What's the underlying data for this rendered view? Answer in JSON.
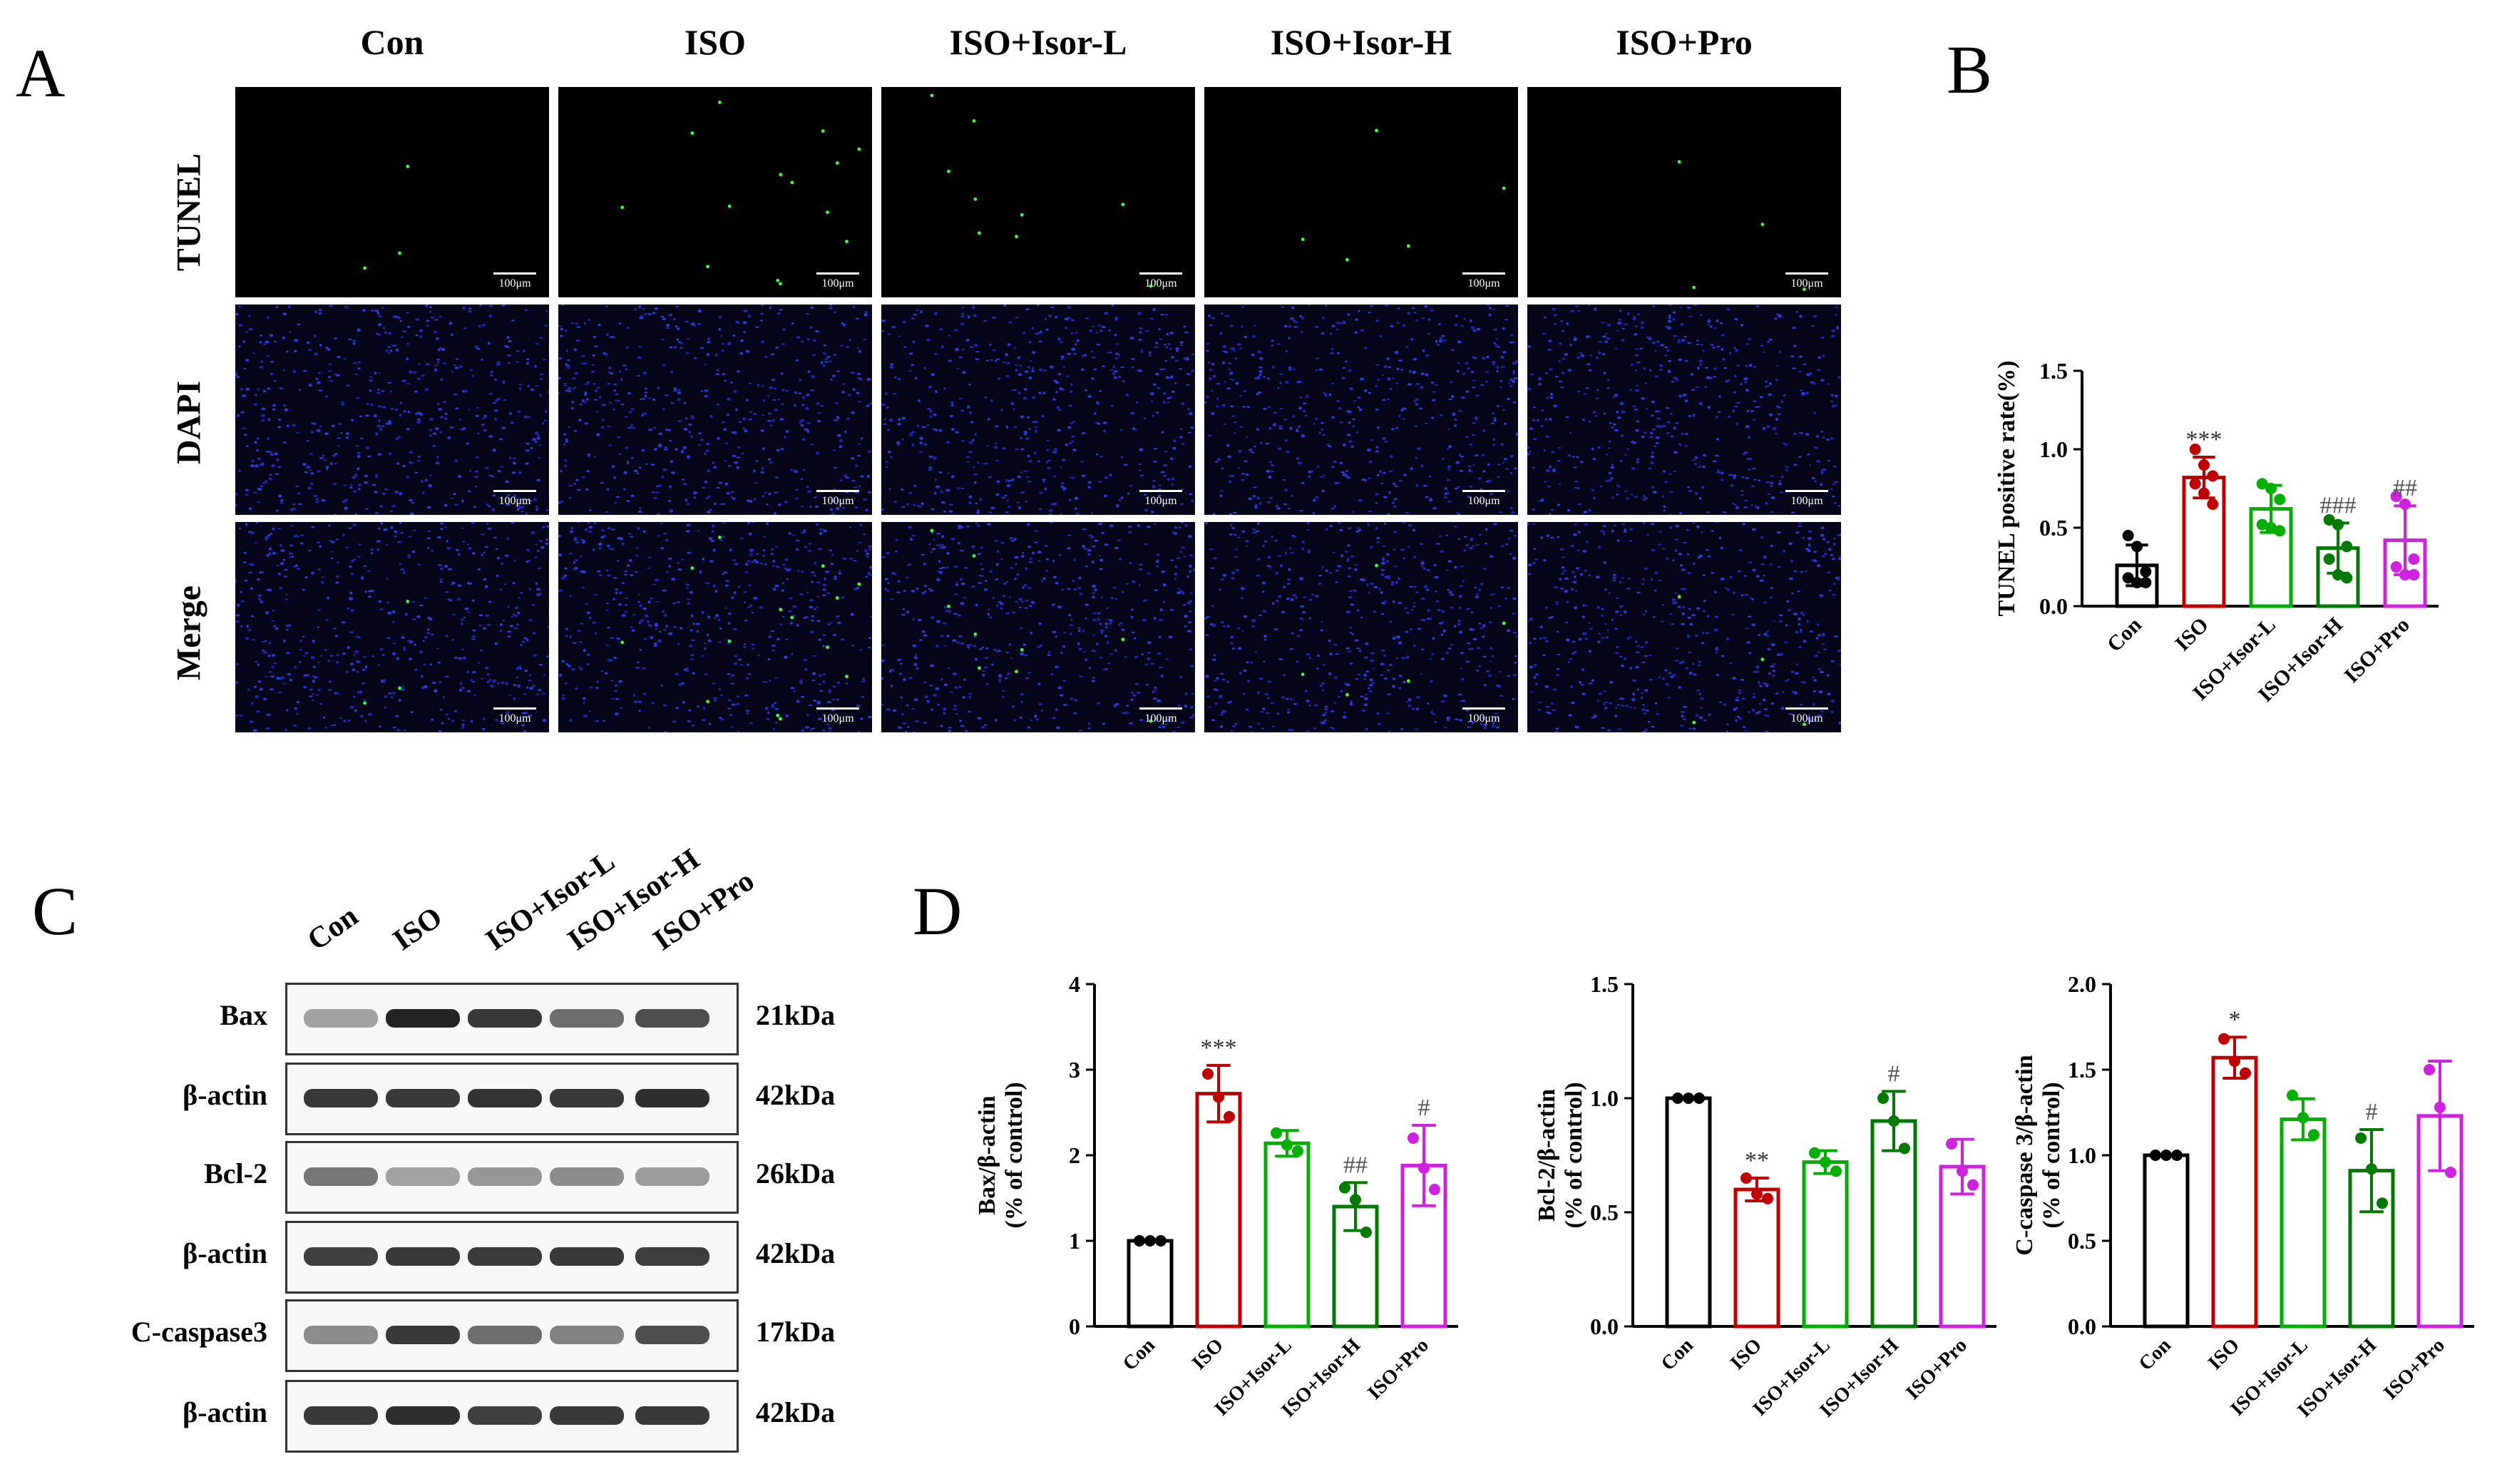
{
  "panels": {
    "a": "A",
    "b": "B",
    "c": "C",
    "d": "D"
  },
  "groups": [
    "Con",
    "ISO",
    "ISO+Isor-L",
    "ISO+Isor-H",
    "ISO+Pro"
  ],
  "colors": {
    "Con": "#000000",
    "ISO": "#c00000",
    "ISO+Isor-L": "#00b000",
    "ISO+Isor-H": "#007a00",
    "ISO+Pro": "#d020e0"
  },
  "microscopy": {
    "rows": [
      "TUNEL",
      "DAPI",
      "Merge"
    ],
    "scale_label": "100μm"
  },
  "western_blot": {
    "rows": [
      {
        "label": "Bax",
        "kda": "21kDa",
        "intensity": [
          0.35,
          0.95,
          0.85,
          0.6,
          0.75
        ]
      },
      {
        "label": "β-actin",
        "kda": "42kDa",
        "intensity": [
          0.85,
          0.85,
          0.88,
          0.85,
          0.9
        ]
      },
      {
        "label": "Bcl-2",
        "kda": "26kDa",
        "intensity": [
          0.55,
          0.35,
          0.4,
          0.45,
          0.38
        ]
      },
      {
        "label": "β-actin",
        "kda": "42kDa",
        "intensity": [
          0.82,
          0.85,
          0.84,
          0.85,
          0.83
        ]
      },
      {
        "label": "C-caspase3",
        "kda": "17kDa",
        "intensity": [
          0.45,
          0.85,
          0.6,
          0.5,
          0.75
        ]
      },
      {
        "label": "β-actin",
        "kda": "42kDa",
        "intensity": [
          0.85,
          0.9,
          0.82,
          0.85,
          0.85
        ]
      }
    ]
  },
  "chart_data": [
    {
      "type": "bar",
      "panel": "B",
      "categories": [
        "Con",
        "ISO",
        "ISO+Isor-L",
        "ISO+Isor-H",
        "ISO+Pro"
      ],
      "values": [
        0.26,
        0.82,
        0.62,
        0.37,
        0.42
      ],
      "errors": [
        0.13,
        0.13,
        0.15,
        0.16,
        0.22
      ],
      "points": [
        [
          0.45,
          0.38,
          0.22,
          0.18,
          0.15,
          0.15
        ],
        [
          1.0,
          0.9,
          0.83,
          0.78,
          0.72,
          0.65
        ],
        [
          0.78,
          0.75,
          0.68,
          0.52,
          0.5,
          0.48
        ],
        [
          0.55,
          0.52,
          0.38,
          0.3,
          0.2,
          0.18
        ],
        [
          0.7,
          0.65,
          0.3,
          0.25,
          0.2,
          0.2
        ]
      ],
      "ylabel": "TUNEL positive rate(%)",
      "ylim": [
        0,
        1.5
      ],
      "yticks": [
        "0.0",
        "0.5",
        "1.0",
        "1.5"
      ],
      "annotations": [
        "",
        "***",
        "",
        "###",
        "##"
      ]
    },
    {
      "type": "bar",
      "panel": "D1",
      "categories": [
        "Con",
        "ISO",
        "ISO+Isor-L",
        "ISO+Isor-H",
        "ISO+Pro"
      ],
      "values": [
        1.0,
        2.72,
        2.14,
        1.4,
        1.88
      ],
      "errors": [
        0,
        0.33,
        0.15,
        0.28,
        0.47
      ],
      "points": [
        [
          1.0,
          1.0,
          1.0
        ],
        [
          2.95,
          2.68,
          2.45
        ],
        [
          2.26,
          2.12,
          2.05
        ],
        [
          1.62,
          1.48,
          1.1
        ],
        [
          2.2,
          1.85,
          1.6
        ]
      ],
      "ylabel": "Bax/β-actin",
      "ylabel2": "(% of control)",
      "ylim": [
        0,
        4
      ],
      "yticks": [
        "0",
        "1",
        "2",
        "3",
        "4"
      ],
      "annotations": [
        "",
        "***",
        "",
        "##",
        "#"
      ]
    },
    {
      "type": "bar",
      "panel": "D2",
      "categories": [
        "Con",
        "ISO",
        "ISO+Isor-L",
        "ISO+Isor-H",
        "ISO+Pro"
      ],
      "values": [
        1.0,
        0.6,
        0.72,
        0.9,
        0.7
      ],
      "errors": [
        0,
        0.05,
        0.05,
        0.13,
        0.12
      ],
      "points": [
        [
          1.0,
          1.0,
          1.0
        ],
        [
          0.65,
          0.58,
          0.56
        ],
        [
          0.76,
          0.72,
          0.68
        ],
        [
          1.0,
          0.9,
          0.78
        ],
        [
          0.8,
          0.68,
          0.62
        ]
      ],
      "ylabel": "Bcl-2/β-actin",
      "ylabel2": "(% of control)",
      "ylim": [
        0,
        1.5
      ],
      "yticks": [
        "0.0",
        "0.5",
        "1.0",
        "1.5"
      ],
      "annotations": [
        "",
        "**",
        "",
        "#",
        ""
      ]
    },
    {
      "type": "bar",
      "panel": "D3",
      "categories": [
        "Con",
        "ISO",
        "ISO+Isor-L",
        "ISO+Isor-H",
        "ISO+Pro"
      ],
      "values": [
        1.0,
        1.57,
        1.21,
        0.91,
        1.23
      ],
      "errors": [
        0,
        0.12,
        0.12,
        0.24,
        0.32
      ],
      "points": [
        [
          1.0,
          1.0,
          1.0
        ],
        [
          1.68,
          1.55,
          1.48
        ],
        [
          1.35,
          1.22,
          1.12
        ],
        [
          1.1,
          0.92,
          0.72
        ],
        [
          1.5,
          1.28,
          0.9
        ]
      ],
      "ylabel": "C-caspase 3/β-actin",
      "ylabel2": "(% of control)",
      "ylim": [
        0,
        2
      ],
      "yticks": [
        "0.0",
        "0.5",
        "1.0",
        "1.5",
        "2.0"
      ],
      "annotations": [
        "",
        "*",
        "",
        "#",
        ""
      ]
    }
  ]
}
